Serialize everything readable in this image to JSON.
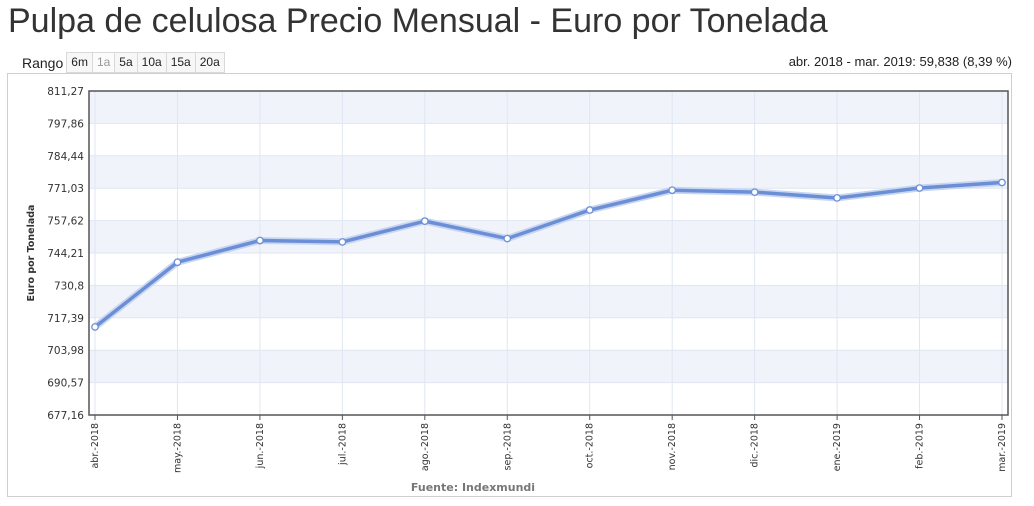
{
  "page": {
    "title": "Pulpa de celulosa Precio Mensual - Euro por Tonelada"
  },
  "range": {
    "label": "Rango",
    "buttons": [
      {
        "label": "6m",
        "enabled": true
      },
      {
        "label": "1a",
        "enabled": false
      },
      {
        "label": "5a",
        "enabled": true
      },
      {
        "label": "10a",
        "enabled": true
      },
      {
        "label": "15a",
        "enabled": true
      },
      {
        "label": "20a",
        "enabled": true
      }
    ]
  },
  "summary": "abr. 2018 - mar. 2019: 59,838 (8,39 %)",
  "colors": {
    "line": "#6b8fd6",
    "band": "#f1f3fb",
    "grid": "#dfe6f2"
  },
  "chart_data": {
    "type": "line",
    "ylabel": "Euro por Tonelada",
    "source": "Fuente: Indexmundi",
    "ylim": [
      677.16,
      811.27
    ],
    "yticks": [
      "811,27",
      "797,86",
      "784,44",
      "771,03",
      "757,62",
      "744,21",
      "730,8",
      "717,39",
      "703,98",
      "690,57",
      "677,16"
    ],
    "categories": [
      "abr.-2018",
      "may.-2018",
      "jun.-2018",
      "jul.-2018",
      "ago.-2018",
      "sep.-2018",
      "oct.-2018",
      "nov.-2018",
      "dic.-2018",
      "ene.-2019",
      "feb.-2019",
      "mar.-2019"
    ],
    "series": [
      {
        "values": [
          713.6,
          740.4,
          749.4,
          748.8,
          757.4,
          750.2,
          762.0,
          770.2,
          769.4,
          767.0,
          771.1,
          773.4
        ]
      }
    ]
  }
}
